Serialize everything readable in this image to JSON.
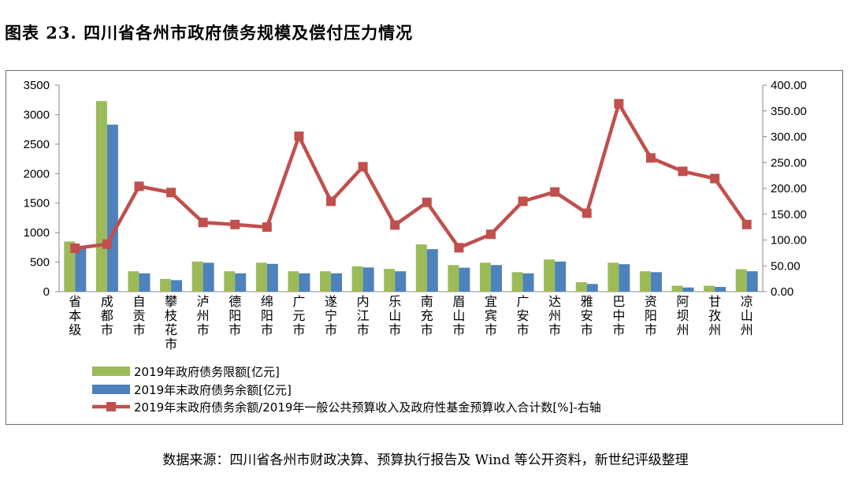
{
  "figure": {
    "title": "图表 23. 四川省各州市政府债务规模及偿付压力情况",
    "source": "数据来源：四川省各州市财政决算、预算执行报告及 Wind 等公开资料，新世纪评级整理"
  },
  "colors": {
    "limit": "#9bbb59",
    "balance": "#4f81bd",
    "ratio": "#c0504d"
  },
  "chart_data": {
    "type": "bar",
    "categories": [
      "省本级",
      "成都市",
      "自贡市",
      "攀枝花市",
      "泸州市",
      "德阳市",
      "绵阳市",
      "广元市",
      "遂宁市",
      "内江市",
      "乐山市",
      "南充市",
      "眉山市",
      "宜宾市",
      "广安市",
      "达州市",
      "雅安市",
      "巴中市",
      "资阳市",
      "阿坝州",
      "甘孜州",
      "凉山州"
    ],
    "series": [
      {
        "name": "2019年政府债务限额[亿元]",
        "type": "bar",
        "axis": "left",
        "values": [
          850,
          3230,
          345,
          215,
          510,
          345,
          490,
          345,
          345,
          430,
          385,
          800,
          450,
          490,
          330,
          545,
          160,
          490,
          345,
          100,
          100,
          380
        ]
      },
      {
        "name": "2019年末政府债务余额[亿元]",
        "type": "bar",
        "axis": "left",
        "values": [
          770,
          2830,
          310,
          195,
          490,
          310,
          470,
          310,
          310,
          410,
          345,
          720,
          405,
          450,
          310,
          510,
          130,
          465,
          330,
          70,
          80,
          345
        ]
      },
      {
        "name": "2019年末政府债务余额/2019年一般公共预算收入及政府性基金预算收入合计数[%]-右轴",
        "type": "line",
        "axis": "right",
        "values": [
          84,
          92,
          204,
          192,
          134,
          130,
          125,
          301,
          175,
          242,
          129,
          173,
          85,
          111,
          175,
          193,
          152,
          364,
          259,
          233,
          219,
          130
        ]
      }
    ],
    "y_left": {
      "min": 0,
      "max": 3500,
      "ticks": [
        "0",
        "500",
        "1000",
        "1500",
        "2000",
        "2500",
        "3000",
        "3500"
      ]
    },
    "y_right": {
      "min": 0,
      "max": 400,
      "ticks": [
        "0.00",
        "50.00",
        "100.00",
        "150.00",
        "200.00",
        "250.00",
        "300.00",
        "350.00",
        "400.00"
      ]
    },
    "grid": false,
    "legend_position": "bottom-left"
  }
}
